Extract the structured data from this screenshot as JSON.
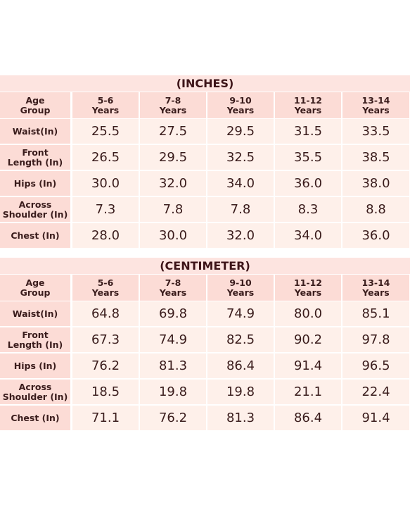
{
  "tables": [
    {
      "title": "(INCHES)",
      "header": [
        [
          "Age",
          "Group"
        ],
        [
          "5-6",
          "Years"
        ],
        [
          "7-8",
          "Years"
        ],
        [
          "9-10",
          "Years"
        ],
        [
          "11-12",
          "Years"
        ],
        [
          "13-14",
          "Years"
        ]
      ],
      "rows": [
        [
          [
            "Waist(In)"
          ],
          "25.5",
          "27.5",
          "29.5",
          "31.5",
          "33.5"
        ],
        [
          [
            "Front",
            "Length (In)"
          ],
          "26.5",
          "29.5",
          "32.5",
          "35.5",
          "38.5"
        ],
        [
          [
            "Hips (In)"
          ],
          "30.0",
          "32.0",
          "34.0",
          "36.0",
          "38.0"
        ],
        [
          [
            "Across",
            "Shoulder (In)"
          ],
          "7.3",
          "7.8",
          "7.8",
          "8.3",
          "8.8"
        ],
        [
          [
            "Chest (In)"
          ],
          "28.0",
          "30.0",
          "32.0",
          "34.0",
          "36.0"
        ]
      ]
    },
    {
      "title": "(CENTIMETER)",
      "header": [
        [
          "Age",
          "Group"
        ],
        [
          "5-6",
          "Years"
        ],
        [
          "7-8",
          "Years"
        ],
        [
          "9-10",
          "Years"
        ],
        [
          "11-12",
          "Years"
        ],
        [
          "13-14",
          "Years"
        ]
      ],
      "rows": [
        [
          [
            "Waist(In)"
          ],
          "64.8",
          "69.8",
          "74.9",
          "80.0",
          "85.1"
        ],
        [
          [
            "Front",
            "Length (In)"
          ],
          "67.3",
          "74.9",
          "82.5",
          "90.2",
          "97.8"
        ],
        [
          [
            "Hips (In)"
          ],
          "76.2",
          "81.3",
          "86.4",
          "91.4",
          "96.5"
        ],
        [
          [
            "Across",
            "Shoulder (In)"
          ],
          "18.5",
          "19.8",
          "19.8",
          "21.1",
          "22.4"
        ],
        [
          [
            "Chest (In)"
          ],
          "71.1",
          "76.2",
          "81.3",
          "86.4",
          "91.4"
        ]
      ]
    }
  ]
}
